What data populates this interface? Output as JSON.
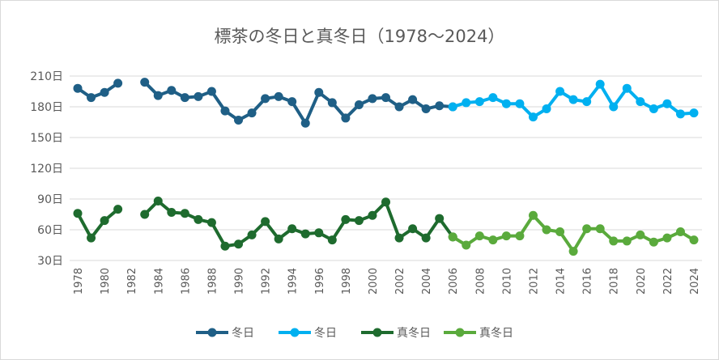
{
  "chart_data": {
    "type": "line",
    "title": "標茶の冬日と真冬日（1978～2024）",
    "ylim": [
      30,
      210
    ],
    "yticks": [
      30,
      60,
      90,
      120,
      150,
      180,
      210
    ],
    "ytick_labels": [
      "30日",
      "60日",
      "90日",
      "120日",
      "150日",
      "180日",
      "210日"
    ],
    "xticks": [
      1978,
      1980,
      1982,
      1984,
      1986,
      1988,
      1990,
      1992,
      1994,
      1996,
      1998,
      2000,
      2002,
      2004,
      2006,
      2008,
      2010,
      2012,
      2014,
      2016,
      2018,
      2020,
      2022,
      2024
    ],
    "grid": "horizontal",
    "legend": "bottom",
    "series": [
      {
        "name": "冬日",
        "color": "#1f5f86",
        "x": [
          1978,
          1979,
          1980,
          1981,
          null,
          1983,
          1984,
          1985,
          1986,
          1987,
          1988,
          1989,
          1990,
          1991,
          1992,
          1993,
          1994,
          1995,
          1996,
          1997,
          1998,
          1999,
          2000,
          2001,
          2002,
          2003,
          2004,
          2005,
          2006
        ],
        "y": [
          198,
          189,
          194,
          203,
          null,
          204,
          191,
          196,
          189,
          190,
          195,
          176,
          167,
          174,
          188,
          190,
          185,
          164,
          194,
          184,
          169,
          182,
          188,
          189,
          180,
          187,
          178,
          181,
          180
        ]
      },
      {
        "name": "冬日",
        "color": "#00b0f0",
        "x": [
          2006,
          2007,
          2008,
          2009,
          2010,
          2011,
          2012,
          2013,
          2014,
          2015,
          2016,
          2017,
          2018,
          2019,
          2020,
          2021,
          2022,
          2023,
          2024
        ],
        "y": [
          180,
          184,
          185,
          189,
          183,
          183,
          170,
          178,
          195,
          187,
          185,
          202,
          180,
          198,
          185,
          178,
          183,
          173,
          174
        ]
      },
      {
        "name": "真冬日",
        "color": "#1e6b2e",
        "x": [
          1978,
          1979,
          1980,
          1981,
          null,
          1983,
          1984,
          1985,
          1986,
          1987,
          1988,
          1989,
          1990,
          1991,
          1992,
          1993,
          1994,
          1995,
          1996,
          1997,
          1998,
          1999,
          2000,
          2001,
          2002,
          2003,
          2004,
          2005,
          2006
        ],
        "y": [
          76,
          52,
          69,
          80,
          null,
          75,
          88,
          77,
          76,
          70,
          67,
          44,
          46,
          55,
          68,
          51,
          61,
          56,
          57,
          50,
          70,
          69,
          74,
          87,
          52,
          61,
          52,
          71,
          53
        ]
      },
      {
        "name": "真冬日",
        "color": "#5aaa3c",
        "x": [
          2006,
          2007,
          2008,
          2009,
          2010,
          2011,
          2012,
          2013,
          2014,
          2015,
          2016,
          2017,
          2018,
          2019,
          2020,
          2021,
          2022,
          2023,
          2024
        ],
        "y": [
          53,
          45,
          54,
          50,
          54,
          54,
          74,
          60,
          58,
          39,
          61,
          61,
          49,
          49,
          55,
          48,
          52,
          58,
          50
        ]
      }
    ]
  }
}
